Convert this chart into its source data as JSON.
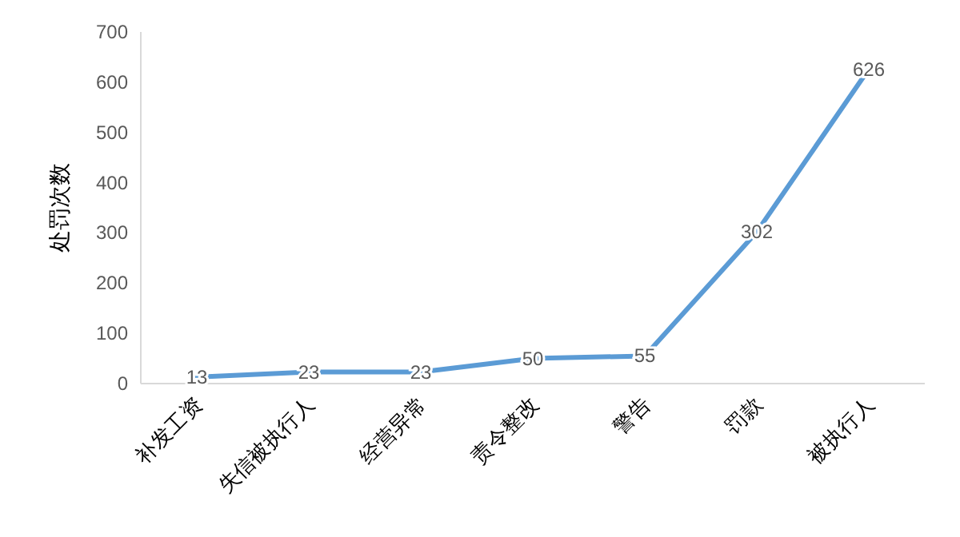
{
  "chart_data": {
    "type": "line",
    "ylabel": "处罚次数",
    "categories": [
      "补发工资",
      "失信被执行人",
      "经营异常",
      "责令整改",
      "警告",
      "罚款",
      "被执行人"
    ],
    "series": [
      {
        "color": "#5b9bd5",
        "values": [
          13,
          23,
          23,
          50,
          55,
          302,
          626
        ]
      }
    ],
    "ylim": [
      0,
      700
    ],
    "yticks": [
      0,
      100,
      200,
      300,
      400,
      500,
      600,
      700
    ],
    "grid": false,
    "data_labels": true,
    "marker": "none",
    "line_style": "solid"
  }
}
